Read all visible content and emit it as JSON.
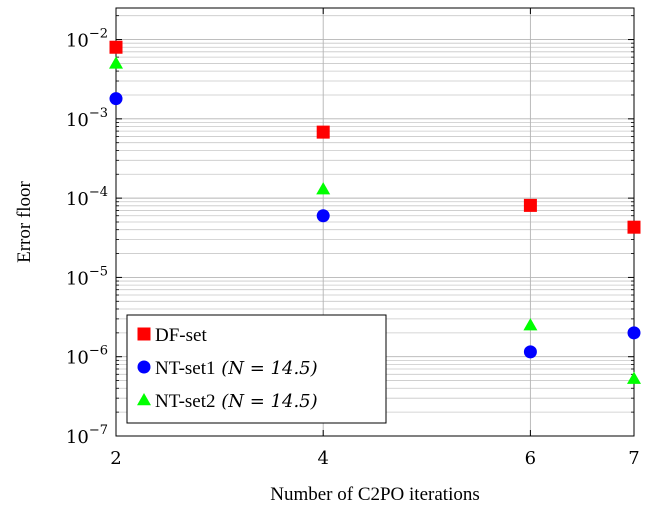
{
  "chart_data": {
    "type": "scatter",
    "title": "",
    "xlabel": "Number of C2PO iterations",
    "ylabel": "Error floor",
    "xlim": [
      2,
      7
    ],
    "ylim": [
      1e-07,
      0.025
    ],
    "yscale": "log",
    "grid": true,
    "legend_position": "bottom-left",
    "x_ticks": [
      {
        "value": 2,
        "label": "2"
      },
      {
        "value": 4,
        "label": "4"
      },
      {
        "value": 6,
        "label": "6"
      },
      {
        "value": 7,
        "label": "7"
      }
    ],
    "y_ticks": [
      {
        "value": 1e-07,
        "base": "10",
        "exp": "−7"
      },
      {
        "value": 1e-06,
        "base": "10",
        "exp": "−6"
      },
      {
        "value": 1e-05,
        "base": "10",
        "exp": "−5"
      },
      {
        "value": 0.0001,
        "base": "10",
        "exp": "−4"
      },
      {
        "value": 0.001,
        "base": "10",
        "exp": "−3"
      },
      {
        "value": 0.01,
        "base": "10",
        "exp": "−2"
      }
    ],
    "series": [
      {
        "name": "DF-set",
        "name_suffix": "",
        "marker": "square",
        "color": "#ff0000",
        "points": [
          {
            "x": 2,
            "y": 0.008
          },
          {
            "x": 4,
            "y": 0.00068
          },
          {
            "x": 6,
            "y": 8.1e-05
          },
          {
            "x": 7,
            "y": 4.3e-05
          }
        ]
      },
      {
        "name": "NT-set1",
        "name_suffix": "(N = 14.5)",
        "marker": "circle",
        "color": "#0000ff",
        "points": [
          {
            "x": 2,
            "y": 0.0018
          },
          {
            "x": 4,
            "y": 6e-05
          },
          {
            "x": 6,
            "y": 1.15e-06
          },
          {
            "x": 7,
            "y": 2e-06
          }
        ]
      },
      {
        "name": "NT-set2",
        "name_suffix": "(N = 14.5)",
        "marker": "triangle",
        "color": "#00ff00",
        "points": [
          {
            "x": 2,
            "y": 0.005
          },
          {
            "x": 4,
            "y": 0.00013
          },
          {
            "x": 6,
            "y": 2.5e-06
          },
          {
            "x": 7,
            "y": 5.3e-07
          }
        ]
      }
    ]
  }
}
